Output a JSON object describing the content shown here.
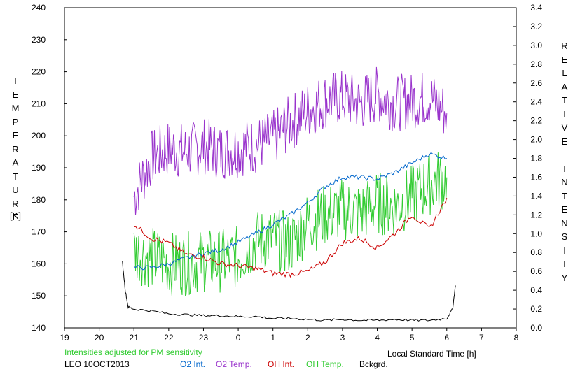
{
  "chart_data": {
    "type": "line",
    "title": "",
    "xlabel": "Local Standard Time [h]",
    "ylabel_left": "TEMPERATURE",
    "ylabel_left_unit": "[K]",
    "ylabel_right": "RELATIVE INTENSITY",
    "x_ticks": [
      "19",
      "20",
      "21",
      "22",
      "23",
      "0",
      "1",
      "2",
      "3",
      "4",
      "5",
      "6",
      "7",
      "8"
    ],
    "x_range_hours_after_19": [
      0,
      13
    ],
    "ylim_left": [
      140,
      240
    ],
    "y_ticks_left": [
      "140",
      "150",
      "160",
      "170",
      "180",
      "190",
      "200",
      "210",
      "220",
      "230",
      "240"
    ],
    "ylim_right": [
      0.0,
      3.4
    ],
    "y_ticks_right": [
      "0.0",
      "0.2",
      "0.4",
      "0.6",
      "0.8",
      "1.0",
      "1.2",
      "1.4",
      "1.6",
      "1.8",
      "2.0",
      "2.2",
      "2.4",
      "2.6",
      "2.8",
      "3.0",
      "3.2",
      "3.4"
    ],
    "grid": false,
    "note": "Intensities adjusted for PM sensitivity",
    "station": "LEO 10OCT2013",
    "legend": [
      {
        "label": "O2 Int.",
        "color": "#0066cc"
      },
      {
        "label": "O2 Temp.",
        "color": "#9933cc"
      },
      {
        "label": "OH Int.",
        "color": "#cc0000"
      },
      {
        "label": "OH Temp.",
        "color": "#33cc33"
      },
      {
        "label": "Bckgrd.",
        "color": "#000000"
      }
    ],
    "series": [
      {
        "name": "O2 Temp.",
        "axis": "left",
        "color": "#9933cc",
        "x": [
          "21:00",
          "21:30",
          "22:00",
          "22:30",
          "23:00",
          "23:30",
          "00:00",
          "00:30",
          "01:00",
          "01:30",
          "02:00",
          "02:30",
          "03:00",
          "03:30",
          "04:00",
          "04:30",
          "05:00",
          "05:30",
          "06:00"
        ],
        "y": [
          181,
          193,
          196,
          195,
          197,
          195,
          196,
          197,
          199,
          204,
          208,
          211,
          212,
          210,
          213,
          210,
          211,
          212,
          207
        ]
      },
      {
        "name": "OH Temp.",
        "axis": "left",
        "color": "#33cc33",
        "x": [
          "21:00",
          "21:30",
          "22:00",
          "22:30",
          "23:00",
          "23:30",
          "00:00",
          "00:30",
          "01:00",
          "01:30",
          "02:00",
          "02:30",
          "03:00",
          "03:30",
          "04:00",
          "04:30",
          "05:00",
          "05:30",
          "06:00"
        ],
        "y": [
          164,
          162,
          160,
          160,
          161,
          161,
          162,
          167,
          168,
          166,
          173,
          175,
          177,
          176,
          179,
          178,
          181,
          185,
          187
        ]
      },
      {
        "name": "O2 Int.",
        "axis": "right",
        "color": "#0066cc",
        "x": [
          "21:00",
          "21:30",
          "22:00",
          "22:30",
          "23:00",
          "23:30",
          "00:00",
          "00:30",
          "01:00",
          "01:30",
          "02:00",
          "02:30",
          "03:00",
          "03:30",
          "04:00",
          "04:30",
          "05:00",
          "05:30",
          "06:00"
        ],
        "y": [
          0.64,
          0.64,
          0.68,
          0.74,
          0.79,
          0.83,
          0.91,
          1.0,
          1.1,
          1.2,
          1.33,
          1.5,
          1.6,
          1.6,
          1.58,
          1.65,
          1.75,
          1.85,
          1.8
        ]
      },
      {
        "name": "OH Int.",
        "axis": "right",
        "color": "#cc0000",
        "x": [
          "21:00",
          "21:30",
          "22:00",
          "22:30",
          "23:00",
          "23:30",
          "00:00",
          "00:30",
          "01:00",
          "01:30",
          "02:00",
          "02:30",
          "03:00",
          "03:30",
          "04:00",
          "04:30",
          "05:00",
          "05:30",
          "06:00"
        ],
        "y": [
          1.1,
          0.95,
          0.9,
          0.78,
          0.75,
          0.68,
          0.66,
          0.63,
          0.58,
          0.57,
          0.6,
          0.7,
          0.9,
          0.95,
          0.85,
          1.0,
          1.2,
          1.05,
          1.38
        ]
      },
      {
        "name": "Bckgrd.",
        "axis": "right",
        "color": "#000000",
        "x": [
          "20:40",
          "20:45",
          "20:50",
          "21:00",
          "21:30",
          "22:00",
          "22:30",
          "23:00",
          "23:30",
          "00:00",
          "00:30",
          "01:00",
          "01:30",
          "02:00",
          "02:30",
          "03:00",
          "03:30",
          "04:00",
          "04:30",
          "05:00",
          "05:30",
          "06:00",
          "06:10",
          "06:15"
        ],
        "y": [
          0.7,
          0.4,
          0.22,
          0.2,
          0.18,
          0.15,
          0.14,
          0.13,
          0.13,
          0.12,
          0.12,
          0.1,
          0.1,
          0.09,
          0.08,
          0.09,
          0.08,
          0.08,
          0.09,
          0.08,
          0.08,
          0.1,
          0.2,
          0.45
        ]
      }
    ]
  }
}
